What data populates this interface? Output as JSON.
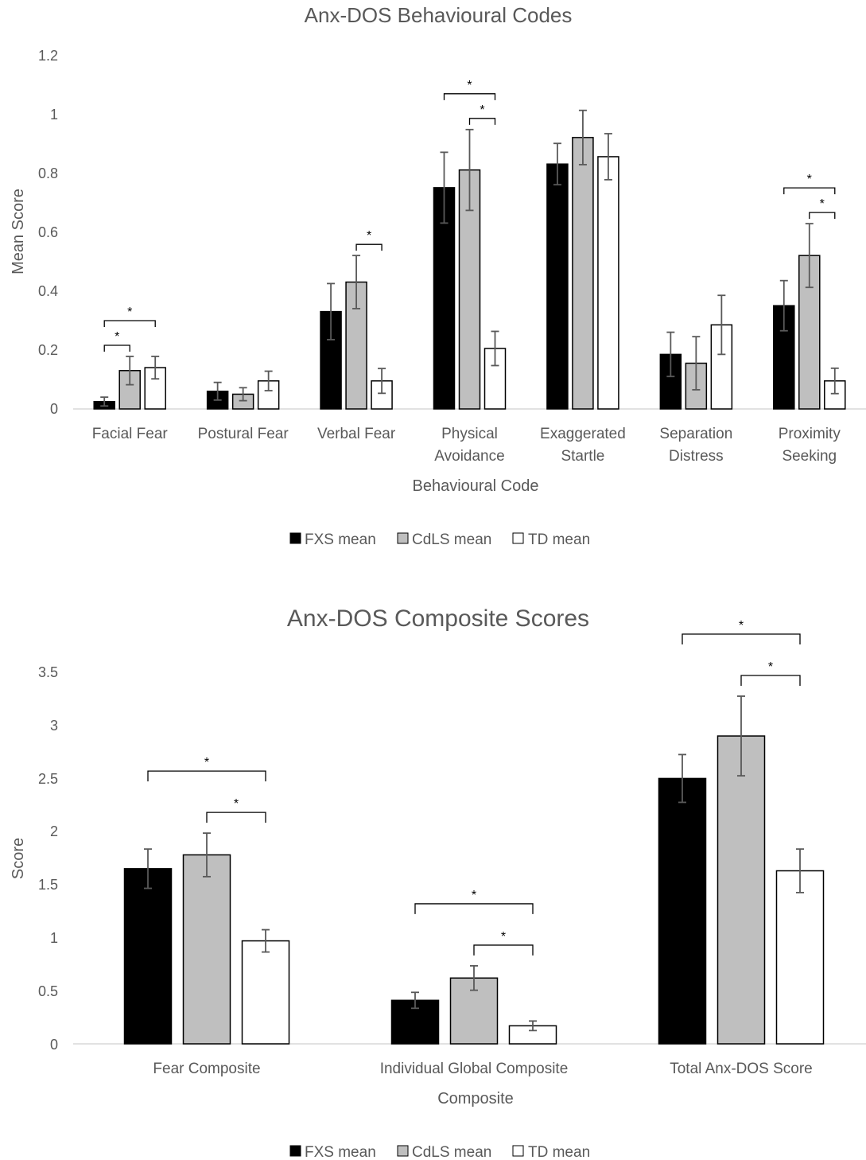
{
  "chart_data": [
    {
      "type": "bar",
      "title": "Anx-DOS Behavioural Codes",
      "xlabel": "Behavioural Code",
      "ylabel": "Mean Score",
      "ylim": [
        0,
        1.2
      ],
      "yticks": [
        "0",
        "0.2",
        "0.4",
        "0.6",
        "0.8",
        "1",
        "1.2"
      ],
      "grid": false,
      "legend_position": "bottom",
      "categories": [
        [
          "Facial Fear"
        ],
        [
          "Postural Fear"
        ],
        [
          "Verbal Fear"
        ],
        [
          "Physical",
          "Avoidance"
        ],
        [
          "Exaggerated",
          "Startle"
        ],
        [
          "Separation",
          "Distress"
        ],
        [
          "Proximity",
          "Seeking"
        ]
      ],
      "series": [
        {
          "name": "FXS mean",
          "color": "#000000",
          "values": [
            0.025,
            0.06,
            0.33,
            0.75,
            0.83,
            0.185,
            0.35
          ],
          "error": [
            0.015,
            0.03,
            0.095,
            0.12,
            0.07,
            0.075,
            0.085
          ]
        },
        {
          "name": "CdLS mean",
          "color": "#bfbfbf",
          "values": [
            0.13,
            0.05,
            0.43,
            0.81,
            0.92,
            0.155,
            0.52
          ],
          "error": [
            0.048,
            0.022,
            0.09,
            0.137,
            0.092,
            0.09,
            0.108
          ]
        },
        {
          "name": "TD mean",
          "color": "#ffffff",
          "values": [
            0.14,
            0.095,
            0.095,
            0.205,
            0.855,
            0.285,
            0.095
          ],
          "error": [
            0.038,
            0.033,
            0.042,
            0.058,
            0.078,
            0.1,
            0.043
          ]
        }
      ],
      "significance": [
        {
          "category": 0,
          "from": 0,
          "to": 2,
          "label": "*"
        },
        {
          "category": 0,
          "from": 0,
          "to": 1,
          "label": "*"
        },
        {
          "category": 2,
          "from": 1,
          "to": 2,
          "label": "*"
        },
        {
          "category": 3,
          "from": 0,
          "to": 2,
          "label": "*"
        },
        {
          "category": 3,
          "from": 1,
          "to": 2,
          "label": "*"
        },
        {
          "category": 6,
          "from": 0,
          "to": 2,
          "label": "*"
        },
        {
          "category": 6,
          "from": 1,
          "to": 2,
          "label": "*"
        }
      ]
    },
    {
      "type": "bar",
      "title": "Anx-DOS Composite Scores",
      "xlabel": "Composite",
      "ylabel": "Score",
      "ylim": [
        0,
        3.5
      ],
      "yticks": [
        "0",
        "0.5",
        "1",
        "1.5",
        "2",
        "2.5",
        "3",
        "3.5"
      ],
      "grid": false,
      "legend_position": "bottom",
      "categories": [
        [
          "Fear Composite"
        ],
        [
          "Individual Global Composite"
        ],
        [
          "Total Anx-DOS Score"
        ]
      ],
      "series": [
        {
          "name": "FXS mean",
          "color": "#000000",
          "values": [
            1.65,
            0.41,
            2.5
          ],
          "error": [
            0.185,
            0.075,
            0.225
          ]
        },
        {
          "name": "CdLS mean",
          "color": "#bfbfbf",
          "values": [
            1.78,
            0.62,
            2.9
          ],
          "error": [
            0.205,
            0.115,
            0.375
          ]
        },
        {
          "name": "TD mean",
          "color": "#ffffff",
          "values": [
            0.97,
            0.17,
            1.63
          ],
          "error": [
            0.105,
            0.045,
            0.205
          ]
        }
      ],
      "significance": [
        {
          "category": 0,
          "from": 0,
          "to": 2,
          "label": "*"
        },
        {
          "category": 0,
          "from": 1,
          "to": 2,
          "label": "*"
        },
        {
          "category": 1,
          "from": 0,
          "to": 2,
          "label": "*"
        },
        {
          "category": 1,
          "from": 1,
          "to": 2,
          "label": "*"
        },
        {
          "category": 2,
          "from": 0,
          "to": 2,
          "label": "*"
        },
        {
          "category": 2,
          "from": 1,
          "to": 2,
          "label": "*"
        }
      ]
    }
  ]
}
